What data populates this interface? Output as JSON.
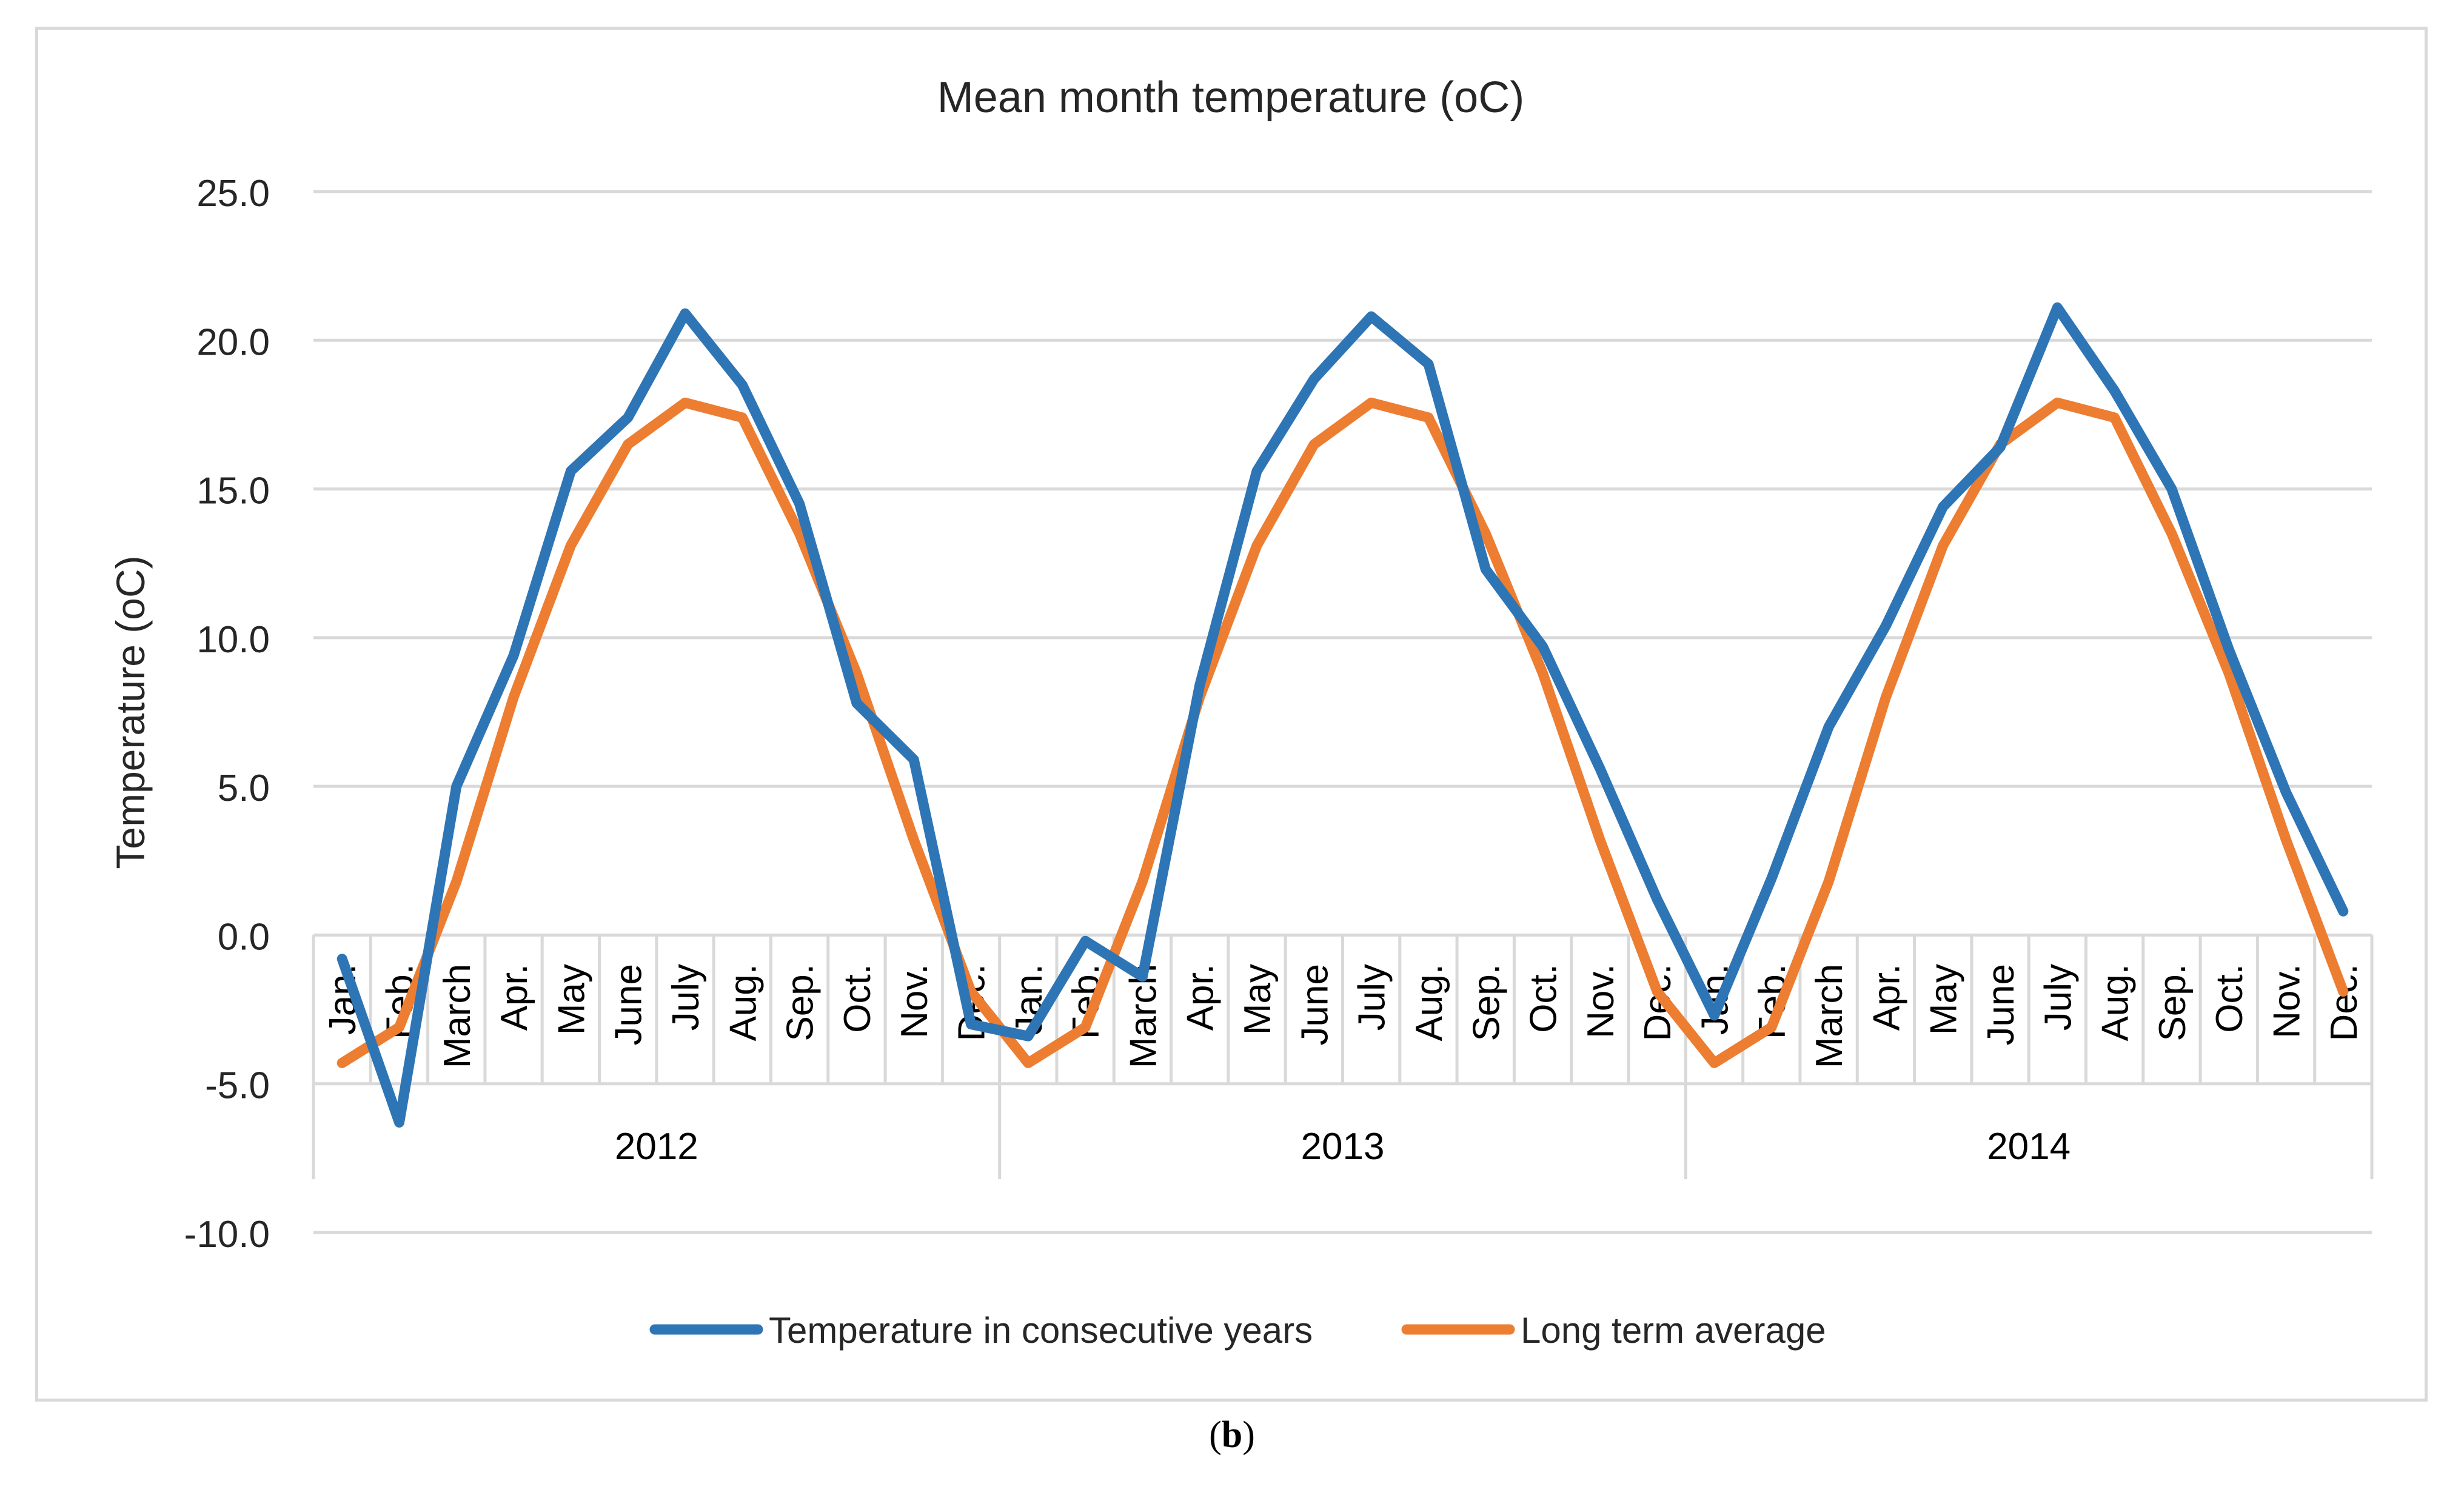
{
  "chart_data": {
    "type": "line",
    "title": "Mean month temperature (oC)",
    "ylabel": "Temperature (oC)",
    "xlabel": "",
    "ylim": [
      -10,
      25
    ],
    "yticks": [
      -10,
      -5,
      0,
      5,
      10,
      15,
      20,
      25
    ],
    "ytick_labels": [
      "-10.0",
      "-5.0",
      "0.0",
      "5.0",
      "10.0",
      "15.0",
      "20.0",
      "25.0"
    ],
    "grid": true,
    "legend_position": "bottom",
    "groups": [
      "2012",
      "2013",
      "2014"
    ],
    "months": [
      "Jan.",
      "Feb.",
      "March",
      "Apr.",
      "May",
      "June",
      "July",
      "Aug.",
      "Sep.",
      "Oct.",
      "Nov.",
      "Dec."
    ],
    "series": [
      {
        "name": "Temperature in consecutive years",
        "color": "#2e75b6",
        "values": [
          -0.8,
          -6.3,
          5.0,
          9.4,
          15.6,
          17.4,
          20.9,
          18.5,
          14.5,
          7.8,
          5.9,
          -3.0,
          -3.4,
          -0.2,
          -1.4,
          8.4,
          15.6,
          18.7,
          20.8,
          19.2,
          12.3,
          9.7,
          5.6,
          1.2,
          -2.7,
          1.9,
          7.0,
          10.4,
          14.4,
          16.4,
          21.1,
          18.3,
          15.0,
          9.6,
          4.8,
          0.8
        ]
      },
      {
        "name": "Long term average",
        "color": "#ed7d31",
        "values": [
          -4.3,
          -3.1,
          1.8,
          8.0,
          13.1,
          16.5,
          17.9,
          17.4,
          13.5,
          8.8,
          3.2,
          -1.9,
          -4.3,
          -3.1,
          1.8,
          8.0,
          13.1,
          16.5,
          17.9,
          17.4,
          13.5,
          8.8,
          3.2,
          -1.9,
          -4.3,
          -3.1,
          1.8,
          8.0,
          13.1,
          16.5,
          17.9,
          17.4,
          13.5,
          8.8,
          3.2,
          -1.9
        ]
      }
    ]
  },
  "caption": {
    "open": "(",
    "letter": "b",
    "close": ")"
  }
}
